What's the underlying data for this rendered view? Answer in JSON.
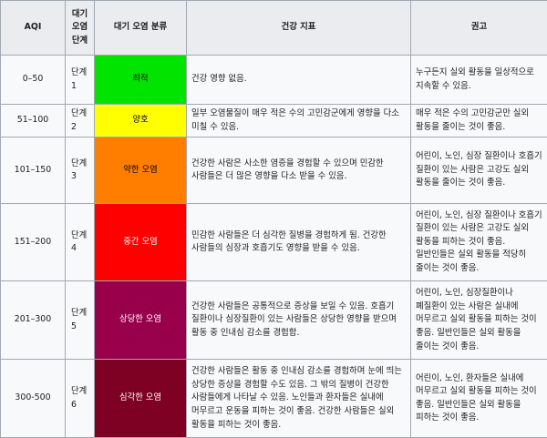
{
  "header": {
    "aqi": "AQI",
    "level": "대기 오염 단계",
    "category": "대기 오염 분류",
    "health": "건강 지표",
    "advice": "권고"
  },
  "rows": [
    {
      "aqi": "0–50",
      "level": "단계 1",
      "category": "최적",
      "color": "#00e400",
      "health": "건강 영향 없음.",
      "advice": "누구든지 실외 활동을 일상적으로 지속할 수 있음."
    },
    {
      "aqi": "51–100",
      "level": "단계 2",
      "category": "양호",
      "color": "#ffff00",
      "health": "일부 오염물질이 매우 적은 수의 고민감군에게 영향을 다소 미칠 수 있음.",
      "advice": "매우 적은 수의 고민감군만 실외 활동을 줄이는 것이 좋음."
    },
    {
      "aqi": "101–150",
      "level": "단계 3",
      "category": "약한 오염",
      "color": "#ff7e00",
      "health": "건강한 사람은 사소한 염증을 경험할 수 있으며 민감한 사람들은 더 많은 영향을 다소 받을 수 있음.",
      "advice": "어린이, 노인, 심장 질환이나 호흡기 질환이 있는 사람은 고강도 실외 활동을 줄이는 것이 좋음."
    },
    {
      "aqi": "151–200",
      "level": "단계 4",
      "category": "중간 오염",
      "color": "#ff0000",
      "health": "민감한 사람들은 더 심각한 질병을 경험하게 됨. 건강한 사람들의 심장과 호흡기도 영향을 받을 수 있음.",
      "advice": "어린이, 노인, 심장 질환이나 호흡기 질환이 있는 사람은 고강도 실외 활동을 피하는 것이 좋음. 일반인들은 실외 활동을 적당히 줄이는 것이 좋음."
    },
    {
      "aqi": "201–300",
      "level": "단계 5",
      "category": "상당한 오염",
      "color": "#99004c",
      "health": "건강한 사람들은 공통적으로 증상을 보일 수 있음. 호흡기 질환이나 심장질환이 있는 사람들은 상당한 영향을 받으며 활동 중 인내심 감소를 경험함.",
      "advice": "어린이, 노인, 심장질환이나 폐질환이 있는 사람은 실내에 머무르고 실외 활동을 피하는 것이 좋음. 일반인들은 실외 활동을 줄이는 것이 좋음."
    },
    {
      "aqi": "300-500",
      "level": "단계 6",
      "category": "심각한 오염",
      "color": "#7e0023",
      "health": "건강한 사람들은 활동 중 인내심 감소를 경험하며 눈에 띄는 상당한 증상을 경험할 수도 있음. 그 밖의 질병이 건강한 사람들에게 나타날 수 있음. 노인들과 환자들은 실내에 머무르고 운동을 피하는 것이 좋음. 건강한 사람들은 실외 활동을 피하는 것이 좋음.",
      "advice": "어린이, 노인, 환자들은 실내에 머무르고 실외 활동을 피하는 것이 좋음. 일반인들은 실외 활동을 피하는 것이 좋음."
    }
  ]
}
